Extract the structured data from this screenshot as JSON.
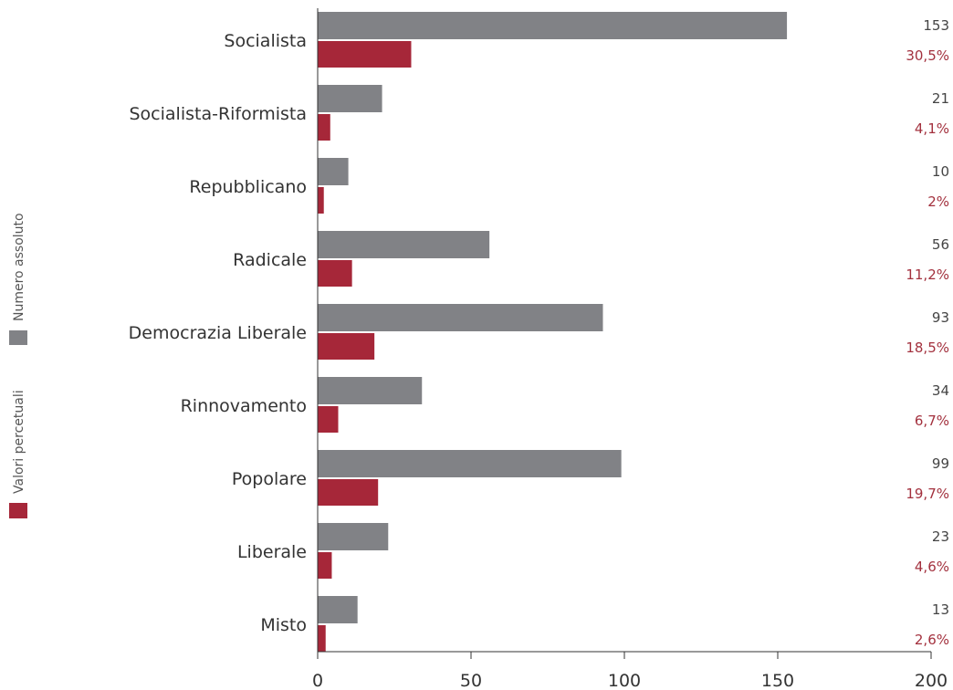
{
  "chart_data": {
    "type": "bar",
    "orientation": "horizontal",
    "categories": [
      "Socialista",
      "Socialista-Riformista",
      "Repubblicano",
      "Radicale",
      "Democrazia Liberale",
      "Rinnovamento",
      "Popolare",
      "Liberale",
      "Misto"
    ],
    "series": [
      {
        "name": "Numero assoluto",
        "color": "#818286",
        "values": [
          153,
          21,
          10,
          56,
          93,
          34,
          99,
          23,
          13
        ]
      },
      {
        "name": "Valori percetuali",
        "color": "#a62739",
        "values": [
          30.5,
          4.1,
          2,
          11.2,
          18.5,
          6.7,
          19.7,
          4.6,
          2.6
        ],
        "labels": [
          "30,5%",
          "4,1%",
          "2%",
          "11,2%",
          "18,5%",
          "6,7%",
          "19,7%",
          "4,6%",
          "2,6%"
        ]
      }
    ],
    "xlim": [
      0,
      200
    ],
    "xticks": [
      0,
      50,
      100,
      150,
      200
    ],
    "grid": false,
    "legend_position": "left, rotated vertically"
  }
}
